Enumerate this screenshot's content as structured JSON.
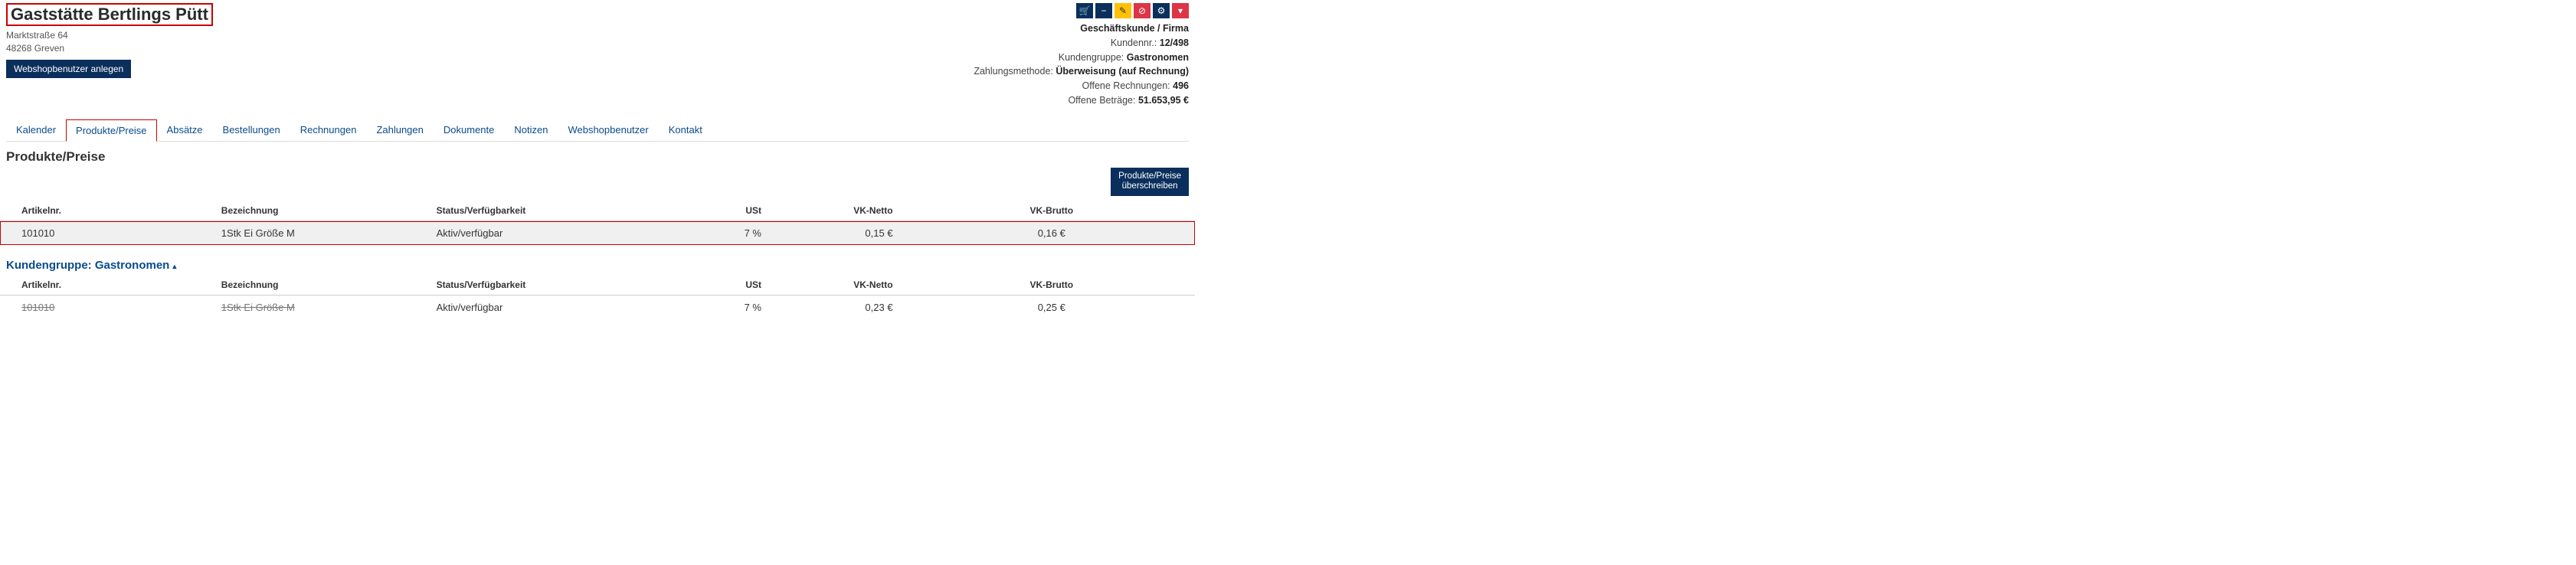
{
  "header": {
    "title": "Gaststätte Bertlings Pütt",
    "address1": "Marktstraße 64",
    "address2": "48268 Greven",
    "create_webshop_user": "Webshopbenutzer anlegen"
  },
  "actions": {
    "cart": "🛒",
    "minus": "−",
    "edit": "✎",
    "block": "⊘",
    "gear": "⚙",
    "more": "▾"
  },
  "meta": {
    "type_label": "Geschäftskunde / Firma",
    "customer_no_label": "Kundennr.:",
    "customer_no": "12/498",
    "group_label": "Kundengruppe:",
    "group": "Gastronomen",
    "pay_label": "Zahlungsmethode:",
    "pay": "Überweisung (auf Rechnung)",
    "open_inv_label": "Offene Rechnungen:",
    "open_inv": "496",
    "open_amt_label": "Offene Beträge:",
    "open_amt": "51.653,95 €"
  },
  "tabs": {
    "t0": "Kalender",
    "t1": "Produkte/Preise",
    "t2": "Absätze",
    "t3": "Bestellungen",
    "t4": "Rechnungen",
    "t5": "Zahlungen",
    "t6": "Dokumente",
    "t7": "Notizen",
    "t8": "Webshopbenutzer",
    "t9": "Kontakt"
  },
  "section": {
    "title": "Produkte/Preise",
    "override_btn_l1": "Produkte/Preise",
    "override_btn_l2": "überschreiben"
  },
  "columns": {
    "art": "Artikelnr.",
    "bez": "Bezeichnung",
    "stat": "Status/Verfügbarkeit",
    "ust": "USt",
    "netto": "VK-Netto",
    "brutto": "VK-Brutto"
  },
  "row1": {
    "art": "101010",
    "bez": "1Stk Ei Größe M",
    "stat": "Aktiv/verfügbar",
    "ust": "7 %",
    "netto": "0,15 €",
    "brutto": "0,16 €"
  },
  "group": {
    "title": "Kundengruppe: Gastronomen",
    "caret": "▴"
  },
  "row2": {
    "art": "101010",
    "bez": "1Stk Ei Größe M",
    "stat": "Aktiv/verfügbar",
    "ust": "7 %",
    "netto": "0,23 €",
    "brutto": "0,25 €"
  }
}
